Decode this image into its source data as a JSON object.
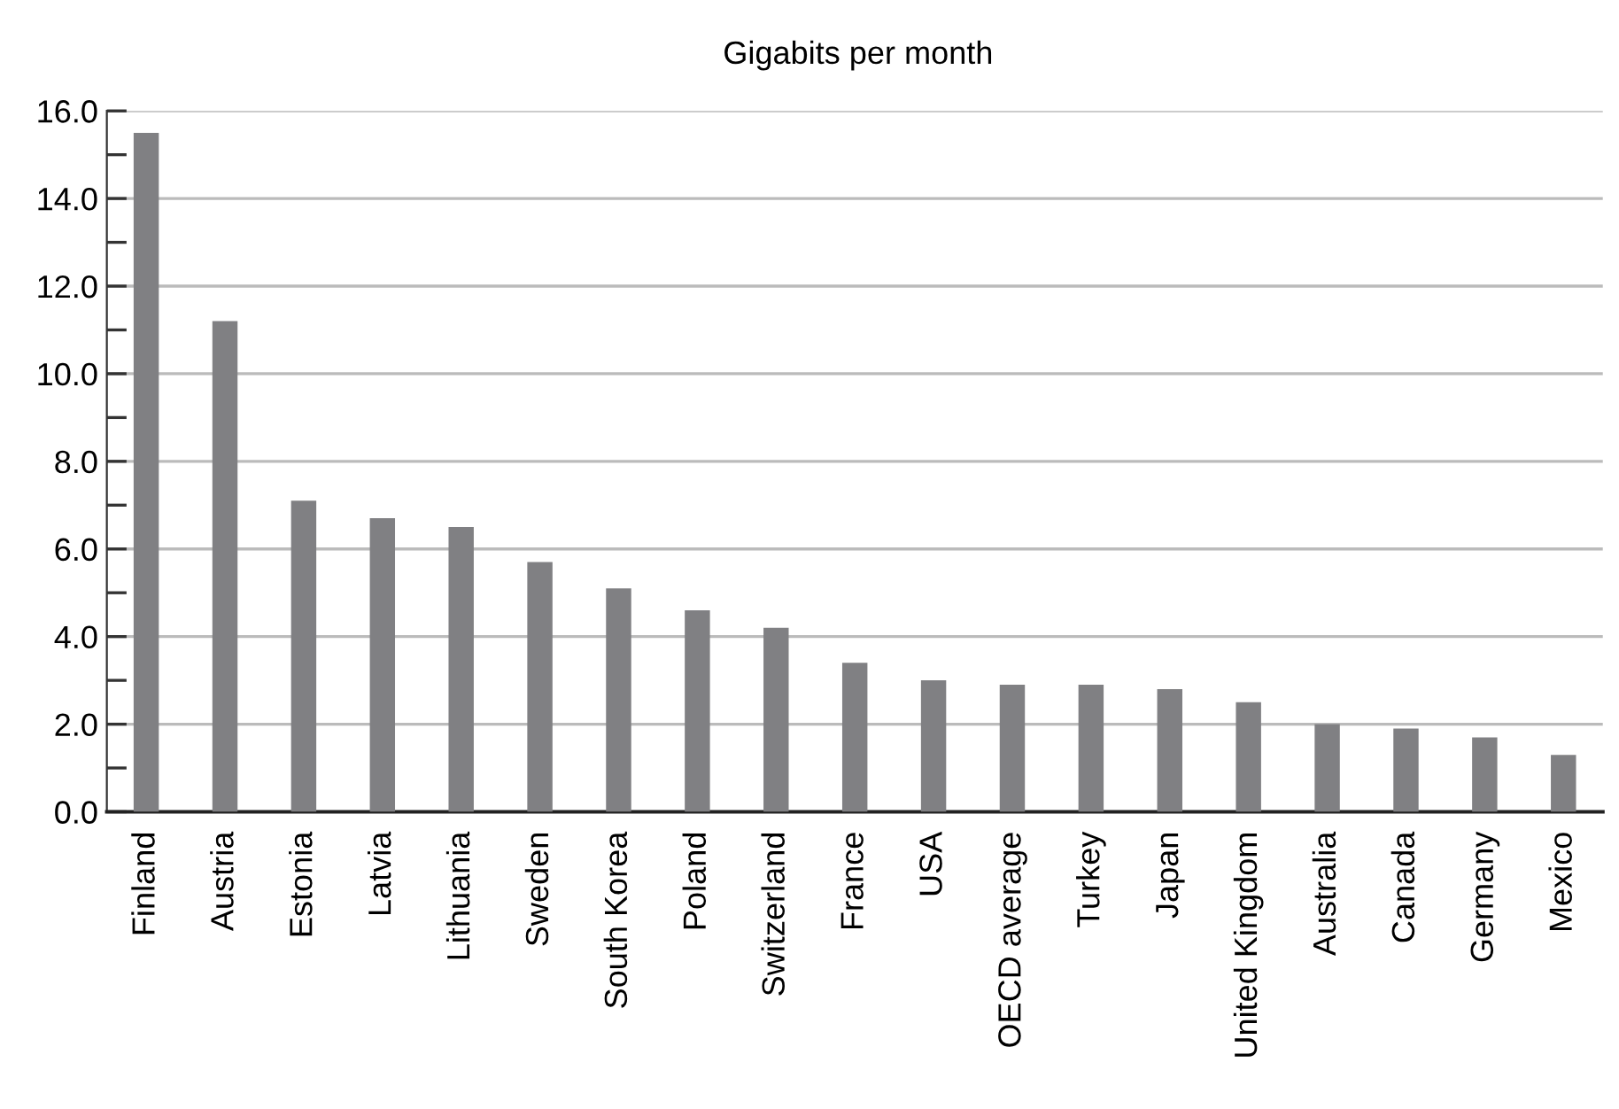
{
  "chart_data": {
    "type": "bar",
    "title": "Gigabits per month",
    "categories": [
      "Finland",
      "Austria",
      "Estonia",
      "Latvia",
      "Lithuania",
      "Sweden",
      "South Korea",
      "Poland",
      "Switzerland",
      "France",
      "USA",
      "OECD average",
      "Turkey",
      "Japan",
      "United Kingdom",
      "Australia",
      "Canada",
      "Germany",
      "Mexico"
    ],
    "values": [
      15.5,
      11.2,
      7.1,
      6.7,
      6.5,
      5.7,
      5.1,
      4.6,
      4.2,
      3.4,
      3.0,
      2.9,
      2.9,
      2.8,
      2.5,
      2.0,
      1.9,
      1.7,
      1.3
    ],
    "color": "#808083",
    "ylim": [
      0,
      16
    ],
    "yticks": [
      {
        "value": 0,
        "label": "0.0"
      },
      {
        "value": 1,
        "label": null
      },
      {
        "value": 2,
        "label": "2.0"
      },
      {
        "value": 3,
        "label": null
      },
      {
        "value": 4,
        "label": "4.0"
      },
      {
        "value": 5,
        "label": null
      },
      {
        "value": 6,
        "label": "6.0"
      },
      {
        "value": 7,
        "label": null
      },
      {
        "value": 8,
        "label": "8.0"
      },
      {
        "value": 9,
        "label": null
      },
      {
        "value": 10,
        "label": "10.0"
      },
      {
        "value": 11,
        "label": null
      },
      {
        "value": 12,
        "label": "12.0"
      },
      {
        "value": 13,
        "label": null
      },
      {
        "value": 14,
        "label": "14.0"
      },
      {
        "value": 15,
        "label": null
      },
      {
        "value": 16,
        "label": "16.0"
      }
    ],
    "grid": "y",
    "legend": false
  }
}
